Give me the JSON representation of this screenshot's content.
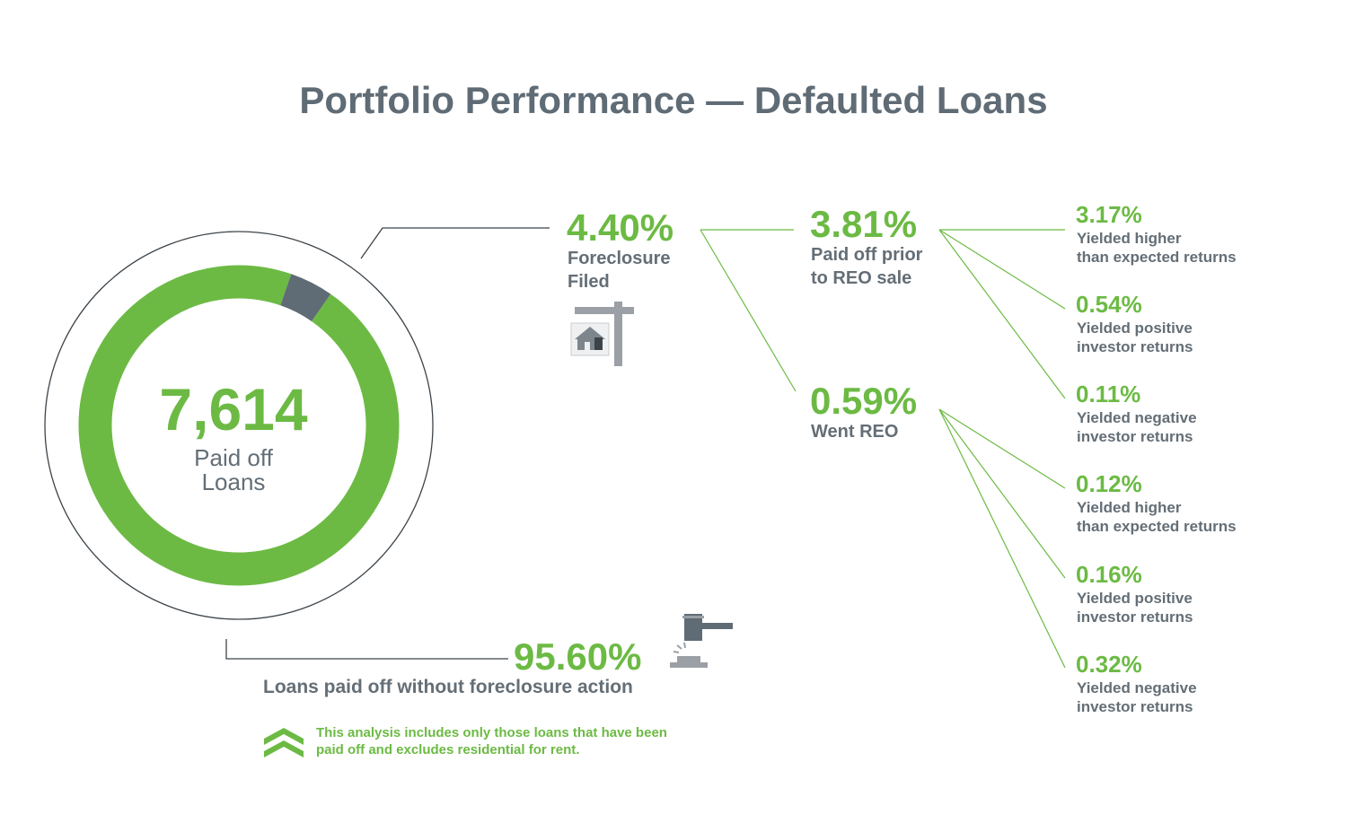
{
  "title": "Portfolio Performance — Defaulted Loans",
  "colors": {
    "accent_green": "#6cba44",
    "dark_segment": "#5f6b75",
    "text_gray": "#646e76",
    "line_dark": "#3c444a"
  },
  "icons": {
    "foreclosure": "house-for-sale-sign-icon",
    "payoff": "gavel-icon",
    "note_bullet": "double-chevron-up-icon"
  },
  "center": {
    "count": "7,614",
    "label_line1": "Paid off",
    "label_line2": "Loans"
  },
  "no_foreclosure": {
    "value": "95.60%",
    "label": "Loans paid off without foreclosure action"
  },
  "foreclosure": {
    "value": "4.40%",
    "label_line1": "Foreclosure",
    "label_line2": "Filed"
  },
  "paid_prior": {
    "value": "3.81%",
    "label_line1": "Paid off prior",
    "label_line2": "to REO sale"
  },
  "went_reo": {
    "value": "0.59%",
    "label_line1": "Went REO"
  },
  "outcomes": [
    {
      "value": "3.17%",
      "line1": "Yielded higher",
      "line2": "than expected returns"
    },
    {
      "value": "0.54%",
      "line1": "Yielded positive",
      "line2": "investor returns"
    },
    {
      "value": "0.11%",
      "line1": "Yielded negative",
      "line2": "investor returns"
    },
    {
      "value": "0.12%",
      "line1": "Yielded higher",
      "line2": "than expected returns"
    },
    {
      "value": "0.16%",
      "line1": "Yielded positive",
      "line2": "investor returns"
    },
    {
      "value": "0.32%",
      "line1": "Yielded negative",
      "line2": "investor returns"
    }
  ],
  "note": {
    "line1": "This analysis includes only those loans that have been",
    "line2": "paid off and excludes residential for rent."
  },
  "chart_data": {
    "type": "pie",
    "total": 7614,
    "slices": [
      {
        "label": "Loans paid off without foreclosure action",
        "value": 95.6
      },
      {
        "label": "Foreclosure Filed",
        "value": 4.4
      }
    ],
    "breakdown": {
      "Foreclosure Filed": {
        "Paid off prior to REO sale": 3.81,
        "Went REO": 0.59
      },
      "Paid off prior to REO sale": {
        "Yielded higher than expected returns": 3.17,
        "Yielded positive investor returns": 0.54,
        "Yielded negative investor returns": 0.11
      },
      "Went REO": {
        "Yielded higher than expected returns": 0.12,
        "Yielded positive investor returns": 0.16,
        "Yielded negative investor returns": 0.32
      }
    }
  }
}
